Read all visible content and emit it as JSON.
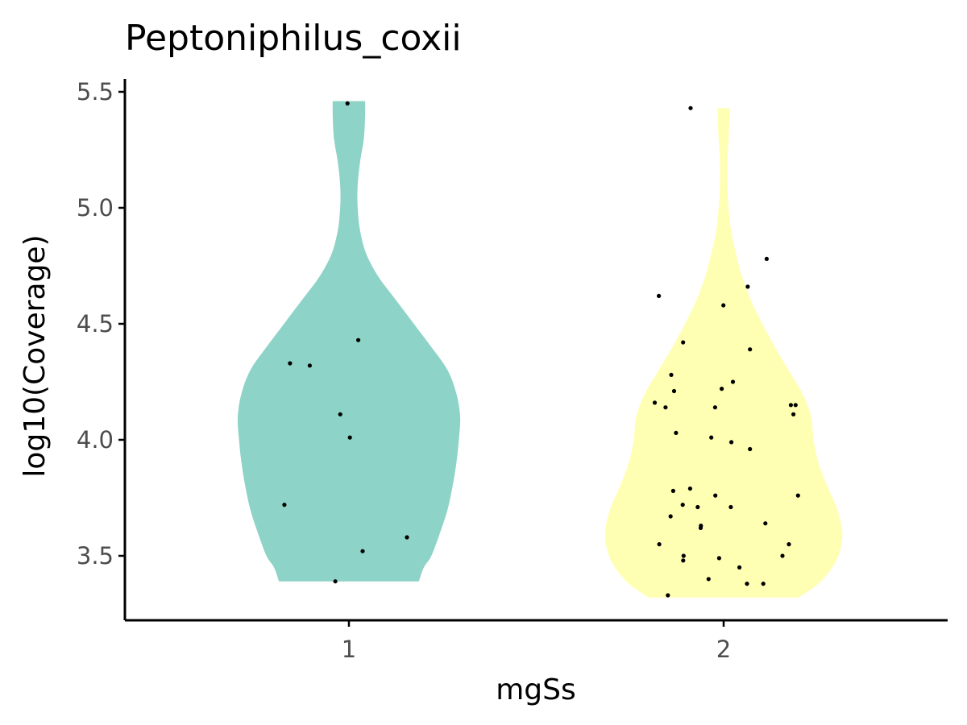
{
  "chart_data": {
    "type": "violin",
    "title": "Peptoniphilus_coxii",
    "xlabel": "mgSs",
    "ylabel": "log10(Coverage)",
    "categories": [
      "1",
      "2"
    ],
    "ylim": [
      3.23,
      5.55
    ],
    "yticks": [
      "3.5",
      "4.0",
      "4.5",
      "5.0",
      "5.5"
    ],
    "grid": false,
    "legend": "none",
    "series": [
      {
        "category": "1",
        "color": "#8ED3C7",
        "range": [
          3.39,
          5.46
        ],
        "density": [
          [
            3.39,
            0.56
          ],
          [
            3.45,
            0.6
          ],
          [
            3.5,
            0.66
          ],
          [
            3.6,
            0.73
          ],
          [
            3.7,
            0.79
          ],
          [
            3.8,
            0.83
          ],
          [
            3.9,
            0.86
          ],
          [
            4.0,
            0.88
          ],
          [
            4.1,
            0.89
          ],
          [
            4.2,
            0.86
          ],
          [
            4.3,
            0.79
          ],
          [
            4.4,
            0.66
          ],
          [
            4.5,
            0.52
          ],
          [
            4.6,
            0.38
          ],
          [
            4.7,
            0.24
          ],
          [
            4.8,
            0.14
          ],
          [
            4.9,
            0.09
          ],
          [
            5.0,
            0.07
          ],
          [
            5.1,
            0.07
          ],
          [
            5.2,
            0.09
          ],
          [
            5.3,
            0.12
          ],
          [
            5.4,
            0.13
          ],
          [
            5.46,
            0.13
          ]
        ],
        "points": [
          5.45,
          4.43,
          4.33,
          4.32,
          4.11,
          4.01,
          3.72,
          3.58,
          3.52,
          3.39
        ]
      },
      {
        "category": "2",
        "color": "#FFFFB3",
        "range": [
          3.32,
          5.43
        ],
        "density": [
          [
            3.32,
            0.6
          ],
          [
            3.38,
            0.76
          ],
          [
            3.45,
            0.87
          ],
          [
            3.52,
            0.93
          ],
          [
            3.6,
            0.95
          ],
          [
            3.7,
            0.91
          ],
          [
            3.8,
            0.83
          ],
          [
            3.9,
            0.76
          ],
          [
            4.0,
            0.72
          ],
          [
            4.1,
            0.7
          ],
          [
            4.2,
            0.63
          ],
          [
            4.3,
            0.52
          ],
          [
            4.4,
            0.41
          ],
          [
            4.5,
            0.31
          ],
          [
            4.6,
            0.22
          ],
          [
            4.7,
            0.15
          ],
          [
            4.8,
            0.1
          ],
          [
            4.9,
            0.06
          ],
          [
            5.0,
            0.04
          ],
          [
            5.1,
            0.03
          ],
          [
            5.2,
            0.03
          ],
          [
            5.3,
            0.04
          ],
          [
            5.43,
            0.05
          ]
        ],
        "points": [
          5.43,
          4.78,
          4.66,
          4.62,
          4.58,
          4.42,
          4.39,
          4.28,
          4.25,
          4.22,
          4.21,
          4.16,
          4.15,
          4.15,
          4.14,
          4.14,
          4.11,
          4.03,
          4.01,
          3.99,
          3.96,
          3.79,
          3.78,
          3.76,
          3.76,
          3.72,
          3.71,
          3.71,
          3.67,
          3.64,
          3.63,
          3.62,
          3.55,
          3.55,
          3.5,
          3.5,
          3.49,
          3.48,
          3.45,
          3.4,
          3.38,
          3.38,
          3.33
        ]
      }
    ]
  }
}
